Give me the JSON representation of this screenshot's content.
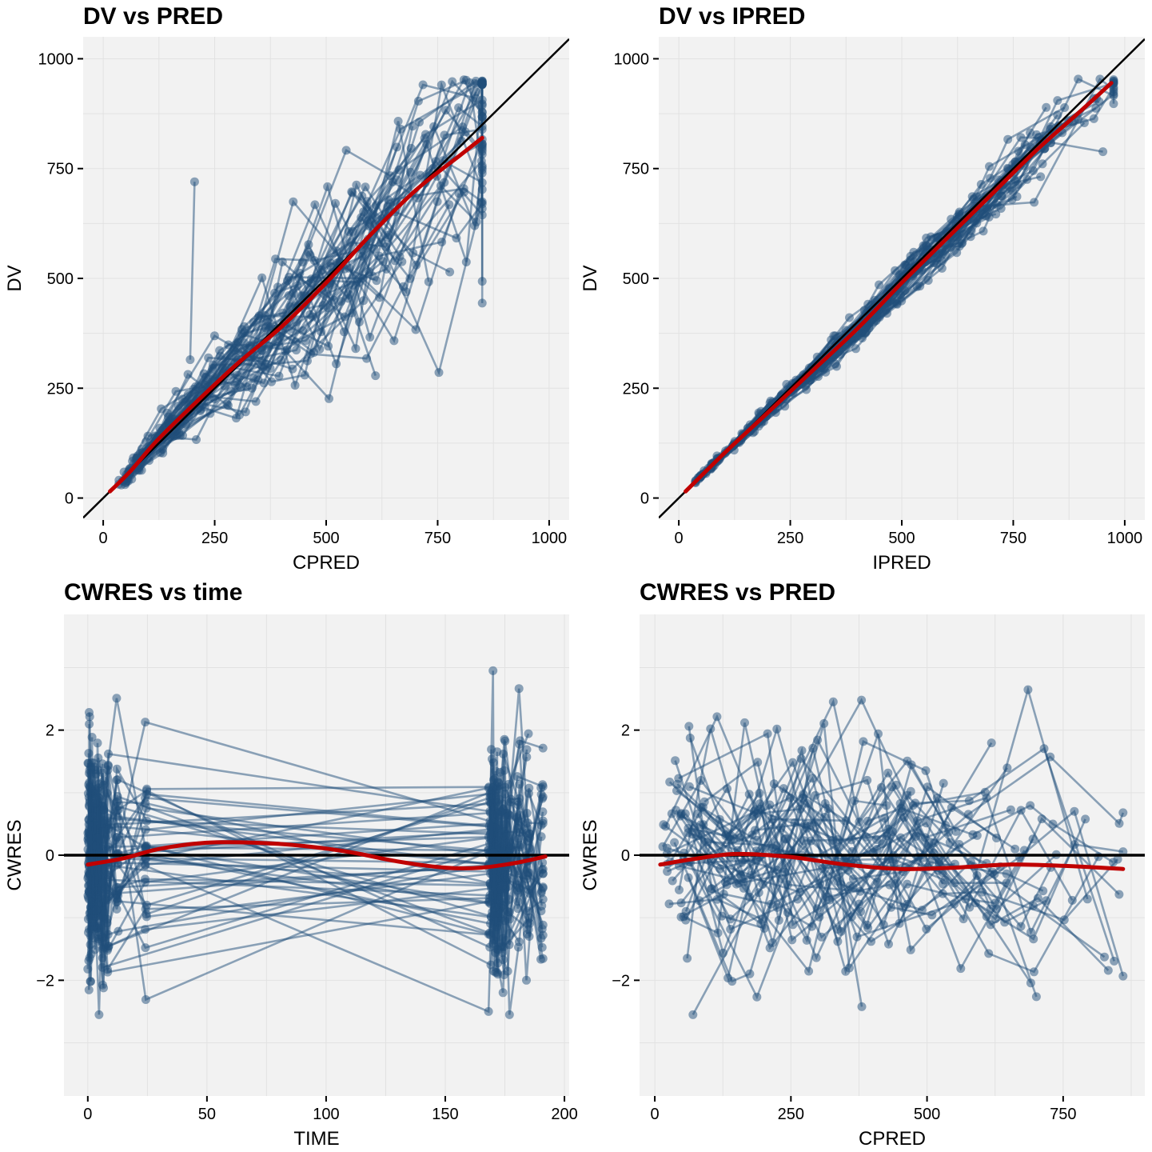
{
  "colors": {
    "points": "#1f4e79",
    "smooth": "#c00000",
    "reference": "#000000",
    "panel": "#f2f2f2",
    "grid": "#e2e2e2"
  },
  "chart_data": [
    {
      "id": "dv-pred",
      "type": "scatter",
      "title": "DV vs PRED",
      "xlabel": "CPRED",
      "ylabel": "DV",
      "xlim": [
        -45,
        1045
      ],
      "ylim": [
        -50,
        1050
      ],
      "xticks": [
        0,
        250,
        500,
        750,
        1000
      ],
      "yticks": [
        0,
        250,
        500,
        750,
        1000
      ],
      "xtick_labels": [
        "0",
        "250",
        "500",
        "750",
        "1000"
      ],
      "ytick_labels": [
        "0",
        "250",
        "500",
        "750",
        "1000"
      ],
      "grid": true,
      "reference": "identity",
      "smooth": [
        [
          15,
          15
        ],
        [
          60,
          60
        ],
        [
          120,
          130
        ],
        [
          200,
          210
        ],
        [
          300,
          305
        ],
        [
          400,
          390
        ],
        [
          500,
          490
        ],
        [
          600,
          600
        ],
        [
          700,
          700
        ],
        [
          800,
          780
        ],
        [
          850,
          820
        ]
      ],
      "noise": 0.2,
      "outlier": [
        [
          195,
          315
        ],
        [
          205,
          720
        ]
      ]
    },
    {
      "id": "dv-ipred",
      "type": "scatter",
      "title": "DV vs IPRED",
      "xlabel": "IPRED",
      "ylabel": "DV",
      "xlim": [
        -45,
        1045
      ],
      "ylim": [
        -50,
        1050
      ],
      "xticks": [
        0,
        250,
        500,
        750,
        1000
      ],
      "yticks": [
        0,
        250,
        500,
        750,
        1000
      ],
      "xtick_labels": [
        "0",
        "250",
        "500",
        "750",
        "1000"
      ],
      "ytick_labels": [
        "0",
        "250",
        "500",
        "750",
        "1000"
      ],
      "grid": true,
      "reference": "identity",
      "smooth": [
        [
          15,
          15
        ],
        [
          100,
          100
        ],
        [
          200,
          195
        ],
        [
          300,
          290
        ],
        [
          400,
          385
        ],
        [
          500,
          490
        ],
        [
          600,
          590
        ],
        [
          700,
          690
        ],
        [
          800,
          790
        ],
        [
          900,
          880
        ],
        [
          970,
          945
        ]
      ],
      "noise": 0.05
    },
    {
      "id": "cwres-time",
      "type": "scatter",
      "title": "CWRES vs time",
      "xlabel": "TIME",
      "ylabel": "CWRES",
      "xlim": [
        -10,
        202
      ],
      "ylim": [
        -3.85,
        3.85
      ],
      "xticks": [
        0,
        50,
        100,
        150,
        200
      ],
      "yticks": [
        -2,
        0,
        2
      ],
      "xtick_labels": [
        "0",
        "50",
        "100",
        "150",
        "200"
      ],
      "ytick_labels": [
        "−2",
        "0",
        "2"
      ],
      "grid": true,
      "reference": "zero",
      "smooth": [
        [
          0,
          -0.15
        ],
        [
          15,
          -0.05
        ],
        [
          30,
          0.1
        ],
        [
          50,
          0.2
        ],
        [
          70,
          0.2
        ],
        [
          90,
          0.15
        ],
        [
          110,
          0.05
        ],
        [
          130,
          -0.1
        ],
        [
          150,
          -0.2
        ],
        [
          165,
          -0.2
        ],
        [
          180,
          -0.12
        ],
        [
          192,
          -0.02
        ]
      ]
    },
    {
      "id": "cwres-pred",
      "type": "scatter",
      "title": "CWRES vs PRED",
      "xlabel": "CPRED",
      "ylabel": "CWRES",
      "xlim": [
        -28,
        900
      ],
      "ylim": [
        -3.85,
        3.85
      ],
      "xticks": [
        0,
        250,
        500,
        750
      ],
      "yticks": [
        -2,
        0,
        2
      ],
      "xtick_labels": [
        "0",
        "250",
        "500",
        "750"
      ],
      "ytick_labels": [
        "−2",
        "0",
        "2"
      ],
      "grid": true,
      "reference": "zero",
      "smooth": [
        [
          10,
          -0.15
        ],
        [
          80,
          -0.05
        ],
        [
          150,
          0.02
        ],
        [
          250,
          -0.03
        ],
        [
          350,
          -0.15
        ],
        [
          450,
          -0.22
        ],
        [
          550,
          -0.2
        ],
        [
          650,
          -0.15
        ],
        [
          750,
          -0.17
        ],
        [
          860,
          -0.22
        ]
      ]
    }
  ]
}
